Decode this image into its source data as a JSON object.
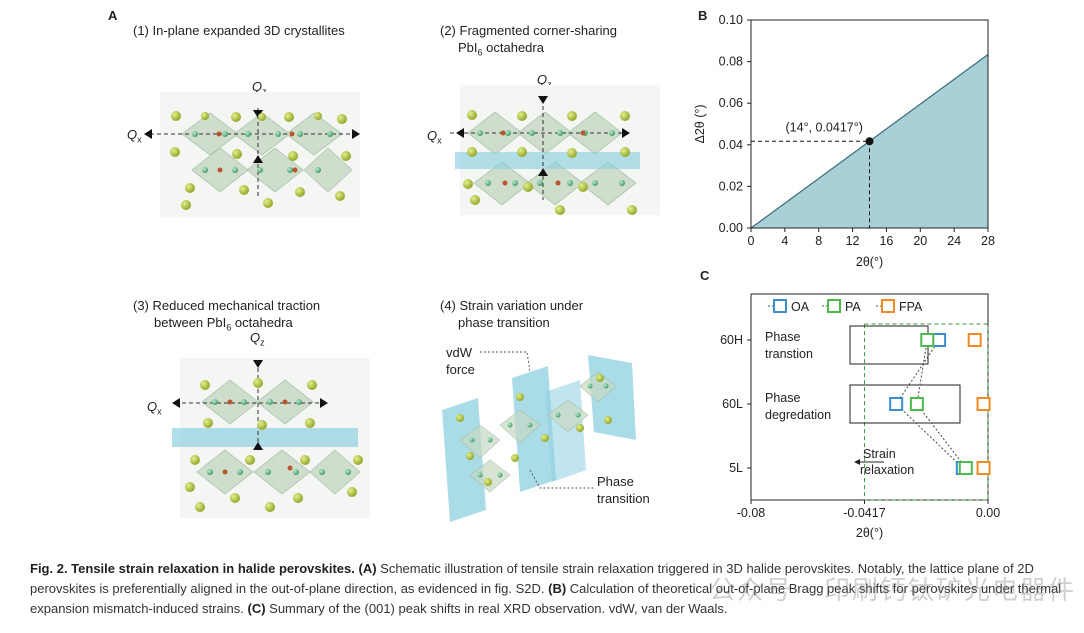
{
  "panel_a": {
    "letter": "A",
    "sub1": "(1) In-plane expanded 3D crystallites",
    "sub2_l1": "(2) Fragmented corner-sharing",
    "sub2_l2_pre": "PbI",
    "sub2_l2_sub": "6",
    "sub2_l2_post": " octahedra",
    "sub3_l1": "(3) Reduced mechanical traction",
    "sub3_l2_pre": "between PbI",
    "sub3_l2_sub": "6",
    "sub3_l2_post": " octahedra",
    "sub4_l1": "(4) Strain variation under",
    "sub4_l2": "phase transition",
    "qz": "Q",
    "qz_sub": "z",
    "qx": "Q",
    "qx_sub": "x",
    "vdw_l1": "vdW",
    "vdw_l2": "force",
    "phase_l1": "Phase",
    "phase_l2": "transition"
  },
  "panel_b": {
    "letter": "B"
  },
  "panel_c": {
    "letter": "C"
  },
  "chart_data": [
    {
      "type": "area",
      "xlabel": "2θ(°)",
      "ylabel": "Δ2θ (°)",
      "xlim": [
        0,
        28
      ],
      "ylim": [
        0,
        0.1
      ],
      "xticks": [
        "0",
        "4",
        "8",
        "12",
        "16",
        "20",
        "24",
        "28"
      ],
      "yticks": [
        "0.00",
        "0.02",
        "0.04",
        "0.06",
        "0.08",
        "0.10"
      ],
      "x": [
        0,
        28
      ],
      "y": [
        0,
        0.0834
      ],
      "fill_color": "#a9d0d6",
      "annotation": {
        "label": "(14°, 0.0417°)",
        "x": 14,
        "y": 0.0417
      }
    },
    {
      "type": "scatter",
      "xlabel": "2θ(°)",
      "xlim": [
        -0.08,
        0.0
      ],
      "xticks": [
        "-0.08",
        "-0.0417",
        "0.00"
      ],
      "categories": [
        "5L",
        "60L",
        "60H"
      ],
      "series": [
        {
          "name": "OA",
          "color": "#3a8fd0",
          "values": [
            -0.0085,
            -0.031,
            -0.0165
          ]
        },
        {
          "name": "PA",
          "color": "#4cba4c",
          "values": [
            -0.0075,
            -0.024,
            -0.0205
          ]
        },
        {
          "name": "FPA",
          "color": "#f08a24",
          "values": [
            -0.0015,
            -0.0015,
            -0.0045
          ]
        }
      ],
      "annotations": [
        {
          "label_l1": "Phase",
          "label_l2": "transtion",
          "category": "60H"
        },
        {
          "label_l1": "Phase",
          "label_l2": "degredation",
          "category": "60L"
        },
        {
          "label_l1": "Strain",
          "label_l2": "relaxation",
          "category": "5L"
        }
      ]
    }
  ],
  "caption": {
    "title": "Fig. 2. Tensile strain relaxation in halide perovskites.",
    "a_lbl": "(A)",
    "a_txt": " Schematic illustration of tensile strain relaxation triggered in 3D halide perovskites. Notably, the lattice plane of 2D perovskites is preferentially aligned in the out-of-plane direction, as evidenced in fig. S2D. ",
    "b_lbl": "(B)",
    "b_txt": " Calculation of theoretical out-of-plane Bragg peak shifts for perovskites under thermal expansion mismatch-induced strains. ",
    "c_lbl": "(C)",
    "c_txt": " Summary of the (001) peak shifts in real XRD observation. vdW, van der Waals."
  },
  "watermark": "公众号 · 印刷钙钛矿光电器件"
}
